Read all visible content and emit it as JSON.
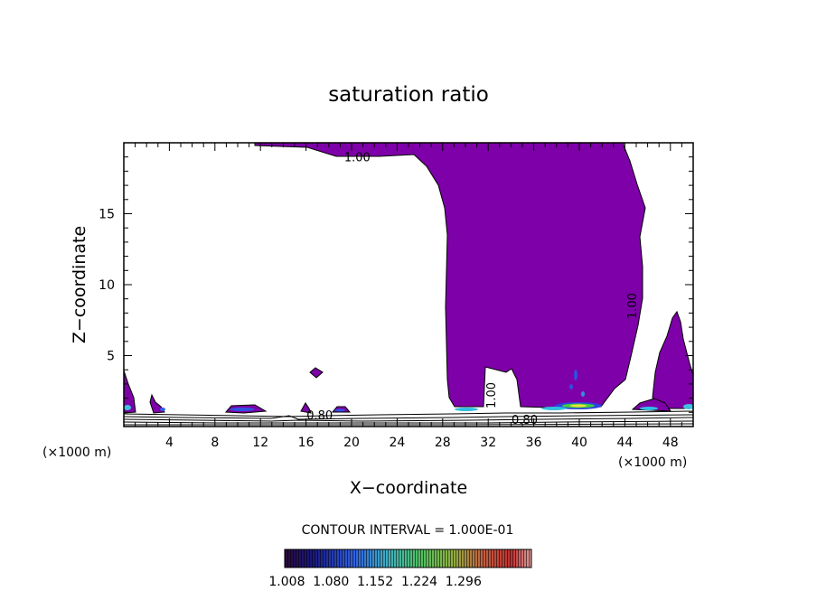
{
  "chart_data": {
    "type": "contour",
    "title": "saturation ratio",
    "xlabel": "X−coordinate",
    "ylabel": "Z−coordinate",
    "x_unit_left": "(×1000 m)",
    "x_unit_right": "(×1000 m)",
    "xlim": [
      0,
      50
    ],
    "ylim": [
      0,
      20
    ],
    "x_ticks": [
      4,
      8,
      12,
      16,
      20,
      24,
      28,
      32,
      36,
      40,
      44,
      48
    ],
    "x_tick_labels": [
      "4",
      "8",
      "12",
      "16",
      "20",
      "24",
      "28",
      "32",
      "36",
      "40",
      "44",
      "48"
    ],
    "y_ticks": [
      5,
      10,
      15
    ],
    "y_tick_labels": [
      "5",
      "10",
      "15"
    ],
    "contour_interval_text": "CONTOUR INTERVAL = 1.000E-01",
    "colorbar": {
      "labels": [
        "1.008",
        "1.080",
        "1.152",
        "1.224",
        "1.296"
      ],
      "range": [
        1.0,
        1.3
      ]
    },
    "contour_labels": [
      {
        "text": "1.00",
        "x": 20.5,
        "z": 18.7
      },
      {
        "text": "1.00",
        "x": 45.0,
        "z": 8.5
      },
      {
        "text": "1.00",
        "x": 32.6,
        "z": 2.2
      },
      {
        "text": "0.80",
        "x": 17.2,
        "z": 0.5
      },
      {
        "text": "0.80",
        "x": 35.2,
        "z": 0.2
      }
    ],
    "saturated_region_color": "#7e00a8",
    "line_color": "#000000"
  }
}
